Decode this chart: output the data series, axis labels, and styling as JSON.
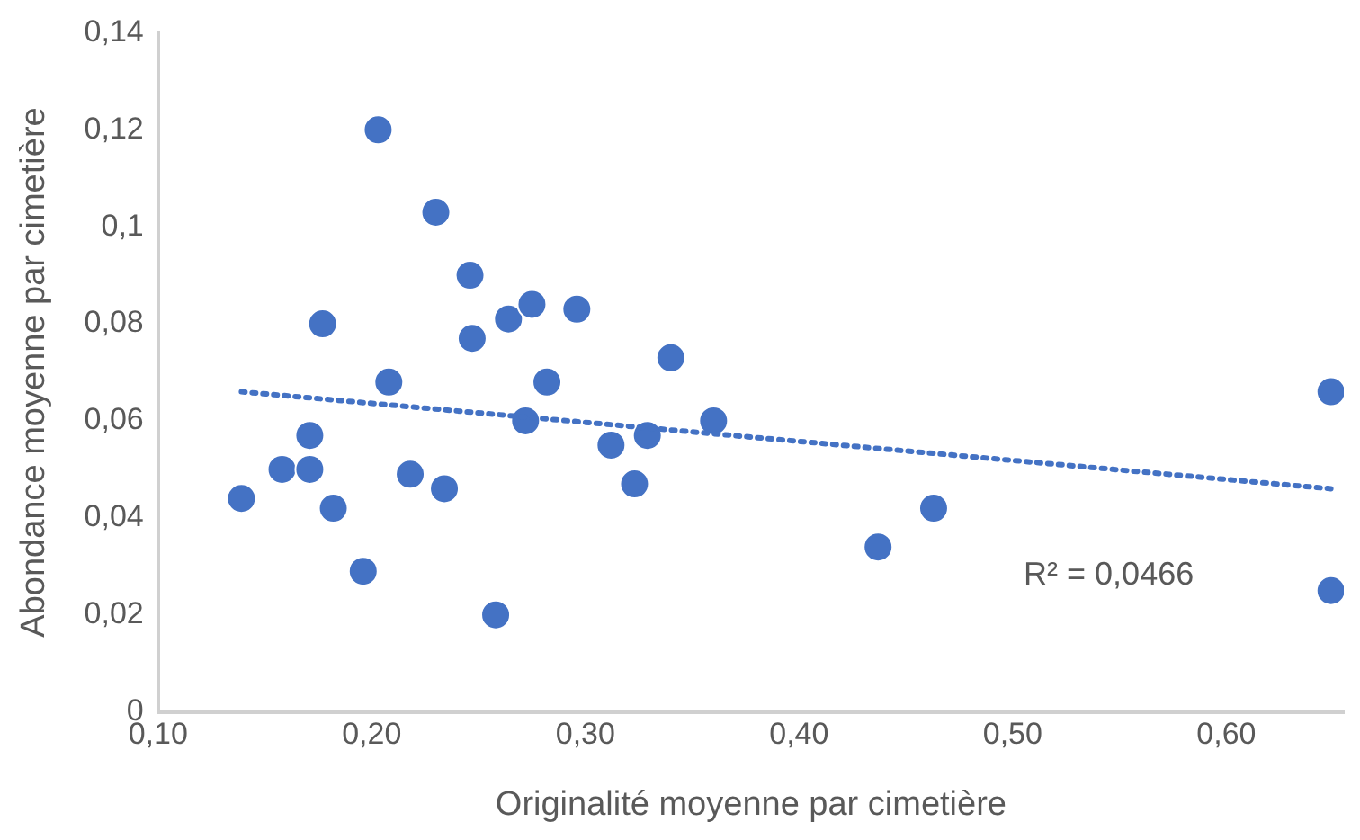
{
  "chart_data": {
    "type": "scatter",
    "xlabel": "Originalité moyenne par cimetière",
    "ylabel": "Abondance moyenne par cimetière",
    "xlim": [
      0.1,
      0.655
    ],
    "xticks": [
      {
        "value": 0.1,
        "label": "0,10"
      },
      {
        "value": 0.2,
        "label": "0,20"
      },
      {
        "value": 0.3,
        "label": "0,30"
      },
      {
        "value": 0.4,
        "label": "0,40"
      },
      {
        "value": 0.5,
        "label": "0,50"
      },
      {
        "value": 0.6,
        "label": "0,60"
      }
    ],
    "ylim": [
      0,
      0.14
    ],
    "yticks": [
      0,
      {
        "value": 0.02,
        "label": "0,02"
      },
      {
        "value": 0.04,
        "label": "0,04"
      },
      {
        "value": 0.06,
        "label": "0,06"
      },
      {
        "value": 0.08,
        "label": "0,08"
      },
      {
        "value": 0.1,
        "label": "0,1"
      },
      {
        "value": 0.12,
        "label": "0,12"
      },
      {
        "value": 0.14,
        "label": "0,14"
      }
    ],
    "grid": false,
    "legend": false,
    "marker": "circle",
    "series": [
      {
        "color": "#4472c4",
        "x": [
          0.139,
          0.158,
          0.171,
          0.171,
          0.182,
          0.177,
          0.196,
          0.208,
          0.203,
          0.218,
          0.23,
          0.234,
          0.246,
          0.247,
          0.258,
          0.264,
          0.272,
          0.275,
          0.282,
          0.296,
          0.312,
          0.323,
          0.329,
          0.34,
          0.36,
          0.437,
          0.463,
          0.649,
          0.649
        ],
        "values": [
          0.044,
          0.05,
          0.05,
          0.057,
          0.042,
          0.08,
          0.029,
          0.068,
          0.12,
          0.049,
          0.103,
          0.046,
          0.09,
          0.077,
          0.02,
          0.081,
          0.06,
          0.084,
          0.068,
          0.083,
          0.055,
          0.047,
          0.057,
          0.073,
          0.06,
          0.034,
          0.042,
          0.066,
          0.025
        ]
      },
      {
        "type": "line",
        "color": "#4472c4",
        "line_style": "dotted",
        "marker": "none",
        "x": [
          0.139,
          0.649
        ],
        "values": [
          0.066,
          0.046
        ]
      }
    ],
    "annotations": [
      "R² = 0,0466"
    ]
  }
}
